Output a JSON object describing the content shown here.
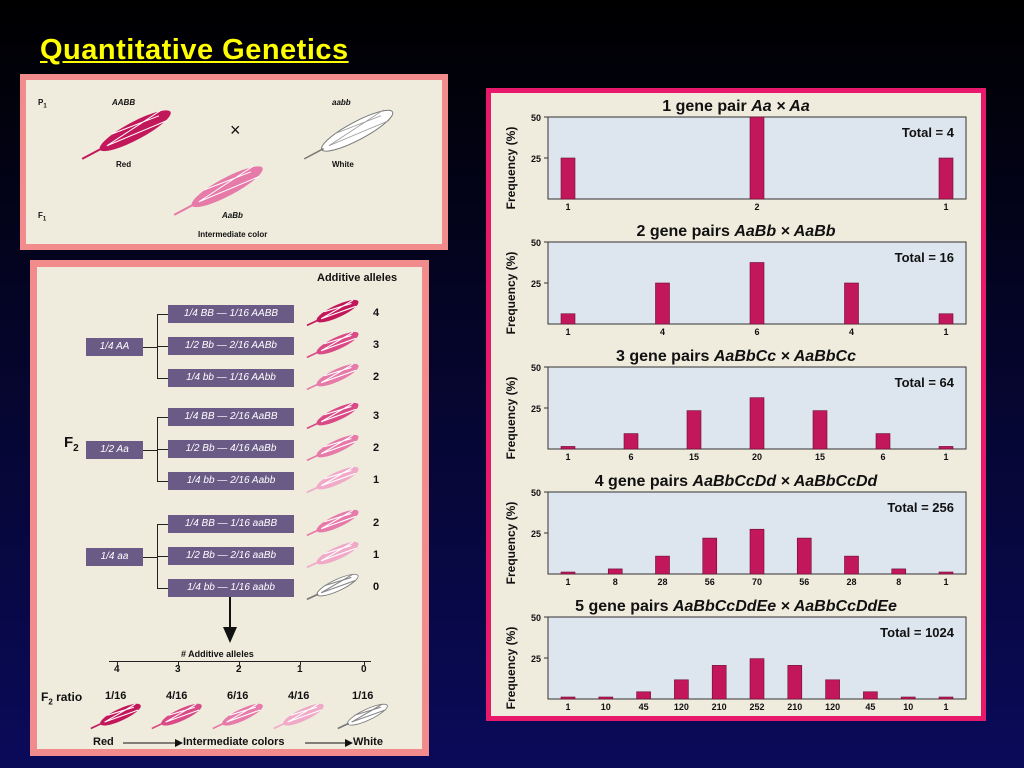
{
  "title": "Quantitative Genetics",
  "parents": {
    "p1_label": "P",
    "p1_sub": "1",
    "f1_label": "F",
    "f1_sub": "1",
    "left_genotype": "AABB",
    "left_color": "Red",
    "right_genotype": "aabb",
    "right_color": "White",
    "cross_symbol": "×",
    "f1_genotype": "AaBb",
    "f1_color": "Intermediate color"
  },
  "f2": {
    "header": "Additive alleles",
    "label": "F",
    "label_sub": "2",
    "groups": [
      {
        "parent": "1/4 AA",
        "rows": [
          {
            "text": "1/4 BB — 1/16 AABB",
            "alleles": "4",
            "ear_color": "#c2185b"
          },
          {
            "text": "1/2 Bb — 2/16 AABb",
            "alleles": "3",
            "ear_color": "#d94a86"
          },
          {
            "text": "1/4 bb — 1/16 AAbb",
            "alleles": "2",
            "ear_color": "#e67aa8"
          }
        ]
      },
      {
        "parent": "1/2 Aa",
        "rows": [
          {
            "text": "1/4 BB — 2/16 AaBB",
            "alleles": "3",
            "ear_color": "#d94a86"
          },
          {
            "text": "1/2 Bb — 4/16 AaBb",
            "alleles": "2",
            "ear_color": "#e67aa8"
          },
          {
            "text": "1/4 bb — 2/16 Aabb",
            "alleles": "1",
            "ear_color": "#f0aac8"
          }
        ]
      },
      {
        "parent": "1/4 aa",
        "rows": [
          {
            "text": "1/4 BB — 1/16 aaBB",
            "alleles": "2",
            "ear_color": "#e67aa8"
          },
          {
            "text": "1/2 Bb — 2/16 aaBb",
            "alleles": "1",
            "ear_color": "#f0aac8"
          },
          {
            "text": "1/4 bb — 1/16 aabb",
            "alleles": "0",
            "ear_color": "#ffffff"
          }
        ]
      }
    ],
    "summary_header": "# Additive alleles",
    "ratio_label": "F",
    "ratio_sub": "2",
    "ratio_word": "ratio",
    "summary": [
      {
        "alleles": "4",
        "ratio": "1/16",
        "ear_color": "#c2185b"
      },
      {
        "alleles": "3",
        "ratio": "4/16",
        "ear_color": "#d94a86"
      },
      {
        "alleles": "2",
        "ratio": "6/16",
        "ear_color": "#e67aa8"
      },
      {
        "alleles": "1",
        "ratio": "4/16",
        "ear_color": "#f0aac8"
      },
      {
        "alleles": "0",
        "ratio": "1/16",
        "ear_color": "#ffffff"
      }
    ],
    "scale_left": "Red",
    "scale_mid": "Intermediate colors",
    "scale_right": "White"
  },
  "chart_data": [
    {
      "type": "bar",
      "title": "1 gene pair",
      "cross": "Aa × Aa",
      "total": "Total = 4",
      "categories": [
        "1",
        "2",
        "1"
      ],
      "values": [
        25,
        50,
        25
      ],
      "ylabel": "Frequency (%)",
      "yticks": [
        "25",
        "50"
      ],
      "ylim": [
        0,
        50
      ]
    },
    {
      "type": "bar",
      "title": "2 gene pairs",
      "cross": "AaBb × AaBb",
      "total": "Total = 16",
      "categories": [
        "1",
        "4",
        "6",
        "4",
        "1"
      ],
      "values": [
        6.25,
        25,
        37.5,
        25,
        6.25
      ],
      "ylabel": "Frequency (%)",
      "yticks": [
        "25",
        "50"
      ],
      "ylim": [
        0,
        50
      ]
    },
    {
      "type": "bar",
      "title": "3 gene pairs",
      "cross": "AaBbCc × AaBbCc",
      "total": "Total = 64",
      "categories": [
        "1",
        "6",
        "15",
        "20",
        "15",
        "6",
        "1"
      ],
      "values": [
        1.56,
        9.4,
        23.4,
        31.3,
        23.4,
        9.4,
        1.56
      ],
      "ylabel": "Frequency (%)",
      "yticks": [
        "25",
        "50"
      ],
      "ylim": [
        0,
        50
      ]
    },
    {
      "type": "bar",
      "title": "4 gene pairs",
      "cross": "AaBbCcDd × AaBbCcDd",
      "total": "Total = 256",
      "categories": [
        "1",
        "8",
        "28",
        "56",
        "70",
        "56",
        "28",
        "8",
        "1"
      ],
      "values": [
        0.39,
        3.1,
        10.9,
        21.9,
        27.3,
        21.9,
        10.9,
        3.1,
        0.39
      ],
      "ylabel": "Frequency (%)",
      "yticks": [
        "25",
        "50"
      ],
      "ylim": [
        0,
        50
      ]
    },
    {
      "type": "bar",
      "title": "5 gene pairs",
      "cross": "AaBbCcDdEe × AaBbCcDdEe",
      "total": "Total = 1024",
      "categories": [
        "1",
        "10",
        "45",
        "120",
        "210",
        "252",
        "210",
        "120",
        "45",
        "10",
        "1"
      ],
      "values": [
        0.1,
        1.0,
        4.4,
        11.7,
        20.5,
        24.6,
        20.5,
        11.7,
        4.4,
        1.0,
        0.1
      ],
      "ylabel": "Frequency (%)",
      "yticks": [
        "25",
        "50"
      ],
      "ylim": [
        0,
        50
      ]
    }
  ],
  "colors": {
    "bar": "#c2185b",
    "chart_bg": "#dde6ef",
    "panel_bg": "#efebdd",
    "frame": "#f28b8b",
    "chart_frame": "#e8196a",
    "title": "#ffff00",
    "box": "#6a5b86"
  }
}
